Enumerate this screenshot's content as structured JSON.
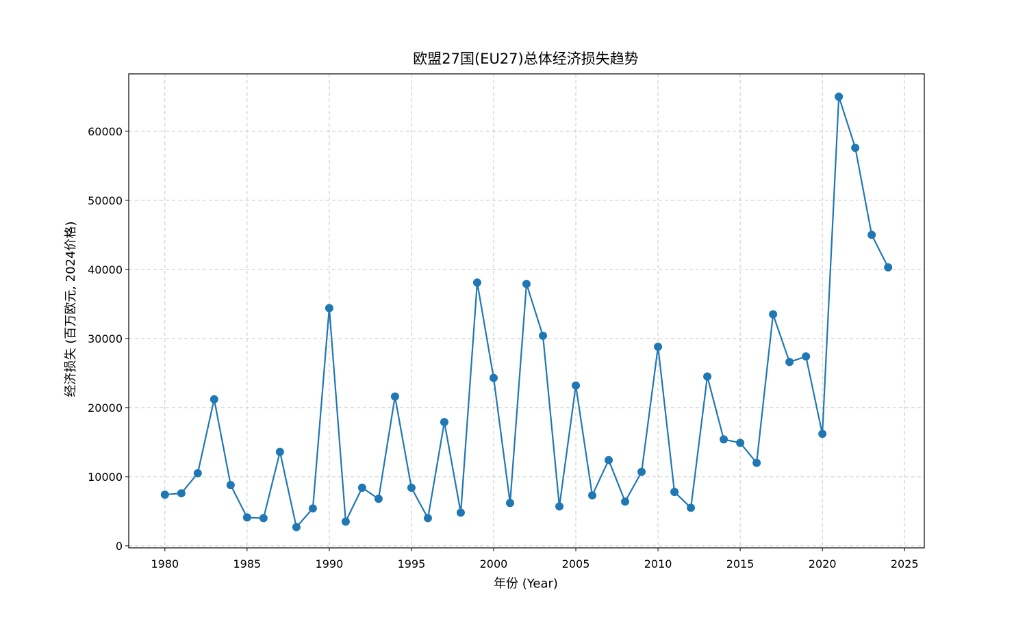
{
  "chart_data": {
    "type": "line",
    "title": "欧盟27国(EU27)总体经济损失趋势",
    "xlabel": "年份 (Year)",
    "ylabel": "经济损失 (百万欧元, 2024价格)",
    "xlim": [
      1977.8,
      2026.2
    ],
    "ylim": [
      -300,
      68300
    ],
    "x_ticks": [
      1980,
      1985,
      1990,
      1995,
      2000,
      2005,
      2010,
      2015,
      2020,
      2025
    ],
    "y_ticks": [
      0,
      10000,
      20000,
      30000,
      40000,
      50000,
      60000
    ],
    "grid": true,
    "marker": "circle",
    "color": "#1f77b4",
    "x": [
      1980,
      1981,
      1982,
      1983,
      1984,
      1985,
      1986,
      1987,
      1988,
      1989,
      1990,
      1991,
      1992,
      1993,
      1994,
      1995,
      1996,
      1997,
      1998,
      1999,
      2000,
      2001,
      2002,
      2003,
      2004,
      2005,
      2006,
      2007,
      2008,
      2009,
      2010,
      2011,
      2012,
      2013,
      2014,
      2015,
      2016,
      2017,
      2018,
      2019,
      2020,
      2021,
      2022,
      2023,
      2024
    ],
    "y": [
      7400,
      7600,
      10500,
      21200,
      8800,
      4100,
      4000,
      13600,
      2700,
      5400,
      34400,
      3500,
      8400,
      6800,
      21600,
      8400,
      4000,
      17900,
      4800,
      38100,
      24300,
      6200,
      37900,
      30400,
      5700,
      23200,
      7300,
      12400,
      6400,
      10700,
      28800,
      7800,
      5500,
      24500,
      15400,
      14900,
      12000,
      33500,
      26600,
      27400,
      16200,
      65000,
      57600,
      45000,
      40300
    ]
  }
}
